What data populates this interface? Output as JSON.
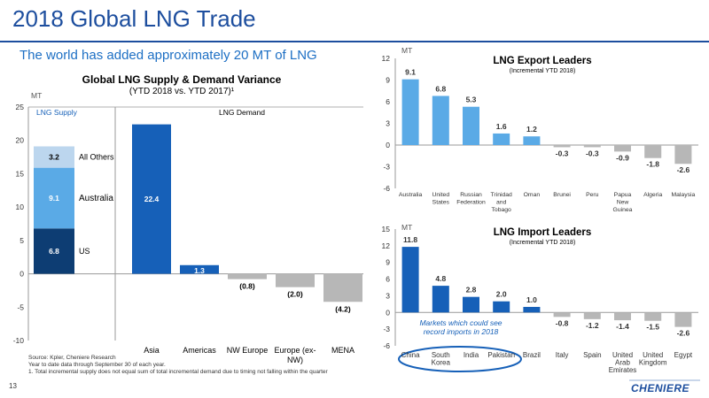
{
  "header": {
    "title": "2018 Global LNG Trade",
    "subtitle": "The world has added approximately 20 MT of LNG"
  },
  "footer": {
    "page_number": "13",
    "logo_text": "CHENIERE",
    "notes": [
      "Source: Kpler, Cheniere Research",
      "Year to date data through September 30 of each year.",
      "1. Total incremental supply does not equal sum of total incremental demand due to timing not falling within the quarter"
    ]
  },
  "colors": {
    "dark_blue": "#0d3d73",
    "blue": "#1660b8",
    "mid_blue": "#5aaae6",
    "light_blue": "#bcd6ee",
    "gray": "#b7b7b7",
    "title_blue": "#1d4e9e"
  },
  "chart_data": [
    {
      "id": "variance",
      "type": "bar",
      "title": "Global LNG Supply & Demand Variance",
      "subtitle": "(YTD 2018 vs. YTD 2017)¹",
      "ylabel": "MT",
      "ylim": [
        -10,
        25
      ],
      "yticks": [
        "25",
        "20",
        "15",
        "10",
        "5",
        "0",
        "-5",
        "-10"
      ],
      "grid": false,
      "section_labels": [
        "LNG Supply",
        "LNG Demand"
      ],
      "supply_stack": [
        {
          "name": "US",
          "value": 6.8,
          "label": "6.8"
        },
        {
          "name": "Australia",
          "value": 9.1,
          "label": "9.1"
        },
        {
          "name": "All Others",
          "value": 3.2,
          "label": "3.2"
        }
      ],
      "categories": [
        "Asia",
        "Americas",
        "NW Europe",
        "Europe (ex-NW)",
        "MENA"
      ],
      "values": [
        22.4,
        1.3,
        -0.8,
        -2.0,
        -4.2
      ],
      "labels": [
        "22.4",
        "1.3",
        "(0.8)",
        "(2.0)",
        "(4.2)"
      ]
    },
    {
      "id": "export",
      "type": "bar",
      "title": "LNG Export Leaders",
      "subtitle": "(Incremental YTD 2018)",
      "ylabel": "MT",
      "ylim": [
        -6,
        12
      ],
      "yticks": [
        "12",
        "9",
        "6",
        "3",
        "0",
        "-3",
        "-6"
      ],
      "grid": false,
      "categories": [
        "Australia",
        "United States",
        "Russian Federation",
        "Trinidad and Tobago",
        "Oman",
        "Brunei",
        "Peru",
        "Papua New Guinea",
        "Algeria",
        "Malaysia"
      ],
      "values": [
        9.1,
        6.8,
        5.3,
        1.6,
        1.2,
        -0.3,
        -0.3,
        -0.9,
        -1.8,
        -2.6
      ],
      "labels": [
        "9.1",
        "6.8",
        "5.3",
        "1.6",
        "1.2",
        "-0.3",
        "-0.3",
        "-0.9",
        "-1.8",
        "-2.6"
      ]
    },
    {
      "id": "import",
      "type": "bar",
      "title": "LNG Import Leaders",
      "subtitle": "(Incremental YTD 2018)",
      "ylabel": "MT",
      "ylim": [
        -6,
        15
      ],
      "yticks": [
        "15",
        "12",
        "9",
        "6",
        "3",
        "0",
        "-3",
        "-6"
      ],
      "grid": false,
      "categories": [
        "China",
        "South Korea",
        "India",
        "Pakistan",
        "Brazil",
        "Italy",
        "Spain",
        "United Arab Emirates",
        "United Kingdom",
        "Egypt"
      ],
      "values": [
        11.8,
        4.8,
        2.8,
        2.0,
        1.0,
        -0.8,
        -1.2,
        -1.4,
        -1.5,
        -2.6
      ],
      "labels": [
        "11.8",
        "4.8",
        "2.8",
        "2.0",
        "1.0",
        "-0.8",
        "-1.2",
        "-1.4",
        "-1.5",
        "-2.6"
      ],
      "annotation": "Markets which could see record imports in 2018"
    }
  ]
}
